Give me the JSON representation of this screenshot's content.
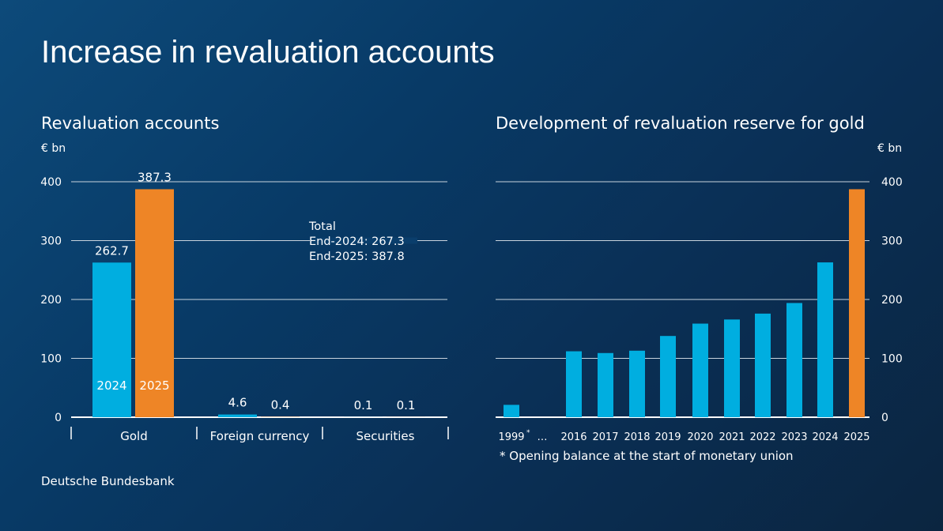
{
  "title": "Increase in revaluation accounts",
  "source": "Deutsche Bundesbank",
  "colors": {
    "series_2024": "#00aee0",
    "series_2025": "#ee8526",
    "background": "#083a66"
  },
  "chart_data": [
    {
      "type": "bar",
      "title": "Revaluation accounts",
      "ylabel": "€ bn",
      "ylim": [
        0,
        400
      ],
      "yticks": [
        0,
        100,
        200,
        300,
        400
      ],
      "grid": true,
      "categories": [
        "Gold",
        "Foreign currency",
        "Securities"
      ],
      "series": [
        {
          "name": "2024",
          "values": [
            262.7,
            4.6,
            0.1
          ],
          "labels": [
            "262.7",
            "4.6",
            "0.1"
          ]
        },
        {
          "name": "2025",
          "values": [
            387.3,
            0.4,
            0.1
          ],
          "labels": [
            "387.3",
            "0.4",
            "0.1"
          ]
        }
      ],
      "annotation": [
        "Total",
        "End-2024: 267.3",
        "End-2025: 387.8"
      ]
    },
    {
      "type": "bar",
      "title": "Development of revaluation reserve for gold",
      "ylabel": "€ bn",
      "ylim": [
        0,
        400
      ],
      "yticks": [
        0,
        100,
        200,
        300,
        400
      ],
      "grid": true,
      "categories": [
        "1999",
        "…",
        "2016",
        "2017",
        "2018",
        "2019",
        "2020",
        "2021",
        "2022",
        "2023",
        "2024",
        "2025"
      ],
      "values": [
        21,
        null,
        112,
        109,
        113,
        138,
        159,
        166,
        176,
        194,
        263,
        387.3
      ],
      "highlight": "2025",
      "footnote_marker": "*",
      "footnote": "* Opening balance at the start of monetary union"
    }
  ]
}
